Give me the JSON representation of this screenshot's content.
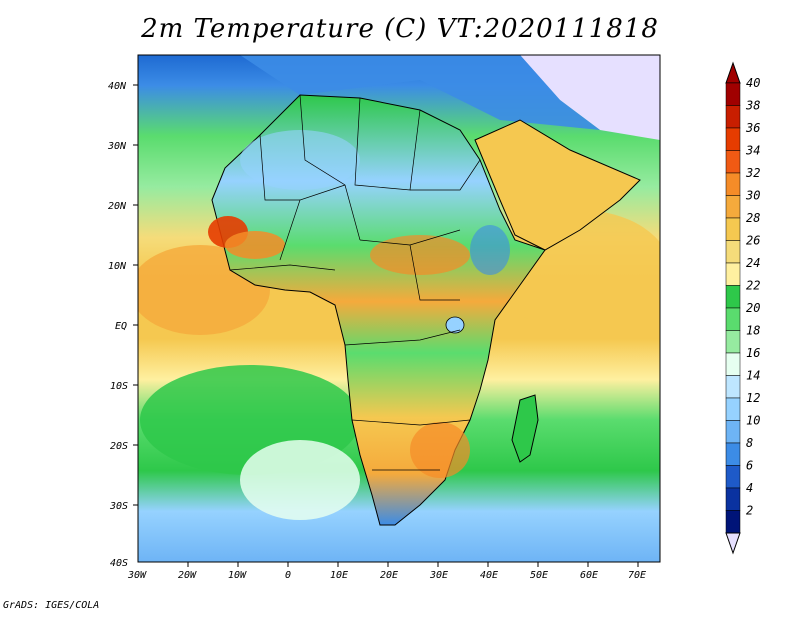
{
  "title": "2m Temperature (C) VT:2020111818",
  "credit": "GrADS: IGES/COLA",
  "map": {
    "lat_labels": [
      "40N",
      "30N",
      "20N",
      "10N",
      "EQ",
      "10S",
      "20S",
      "30S",
      "40S"
    ],
    "lon_labels": [
      "30W",
      "20W",
      "10W",
      "0",
      "10E",
      "20E",
      "30E",
      "40E",
      "50E",
      "60E",
      "70E"
    ],
    "lat_range": [
      -40,
      45
    ],
    "lon_range": [
      -30,
      75
    ]
  },
  "colorbar": {
    "labels": [
      "40",
      "38",
      "36",
      "34",
      "32",
      "30",
      "28",
      "26",
      "24",
      "22",
      "20",
      "18",
      "16",
      "14",
      "12",
      "10",
      "8",
      "6",
      "4",
      "2"
    ],
    "colors": [
      "#a00000",
      "#c81e00",
      "#e63c00",
      "#f05a14",
      "#f58c28",
      "#f5aa3c",
      "#f5c850",
      "#f5dc7a",
      "#fff0a0",
      "#2ec84a",
      "#5adc6e",
      "#96eba0",
      "#e6fff0",
      "#bee6ff",
      "#96d2ff",
      "#6eb4f5",
      "#3c8ce6",
      "#1e5ac8",
      "#0a32a0",
      "#001478"
    ],
    "top_color": "#a00000",
    "bottom_color": "#e6e0ff"
  }
}
